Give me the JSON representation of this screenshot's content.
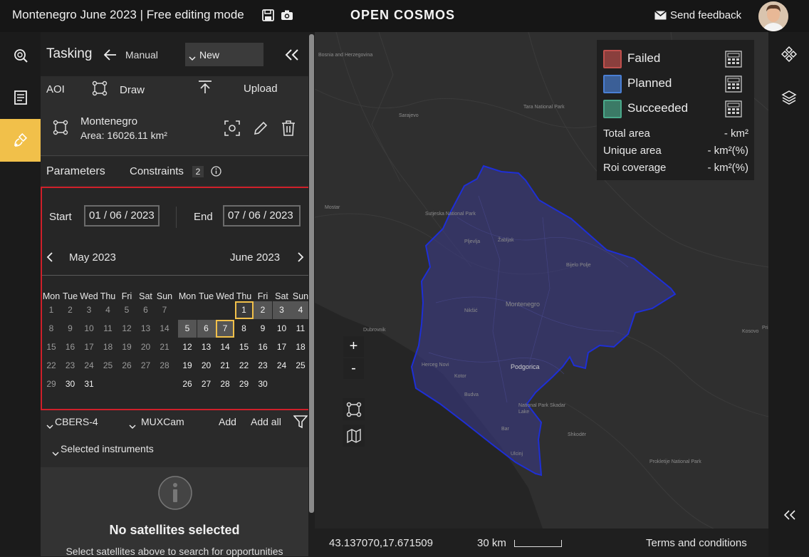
{
  "header": {
    "title": "Montenegro June 2023 | Free editing mode",
    "logo": "OPEN COSMOS",
    "feedback_label": "Send feedback",
    "icons": [
      "save-icon",
      "camera-icon",
      "mail-icon",
      "avatar"
    ]
  },
  "rail": {
    "items": [
      "search-icon",
      "list-icon",
      "satellite-icon"
    ],
    "active": 2
  },
  "panel": {
    "title": "Tasking",
    "mode": "Manual",
    "new_select": "New",
    "aoi_label": "AOI",
    "draw_label": "Draw",
    "upload_label": "Upload",
    "aoi_name": "Montenegro",
    "aoi_area": "Area: 16026.11 km²",
    "parameters_label": "Parameters",
    "constraints_label": "Constraints",
    "constraints_count": "2"
  },
  "dates": {
    "start_label": "Start",
    "start_value": "01 / 06 / 2023",
    "end_label": "End",
    "end_value": "07 / 06 / 2023",
    "month_left": "May 2023",
    "month_right": "June 2023",
    "weekdays": [
      "Mon",
      "Tue",
      "Wed",
      "Thu",
      "Fri",
      "Sat",
      "Sun"
    ],
    "may_weeks": [
      [
        "1",
        "2",
        "3",
        "4",
        "5",
        "6",
        "7"
      ],
      [
        "8",
        "9",
        "10",
        "11",
        "12",
        "13",
        "14"
      ],
      [
        "15",
        "16",
        "17",
        "18",
        "19",
        "20",
        "21"
      ],
      [
        "22",
        "23",
        "24",
        "25",
        "26",
        "27",
        "28"
      ],
      [
        "29",
        "30",
        "31",
        "",
        "",
        "",
        ""
      ]
    ],
    "june_weeks": [
      [
        "",
        "",
        "",
        "1",
        "2",
        "3",
        "4"
      ],
      [
        "5",
        "6",
        "7",
        "8",
        "9",
        "10",
        "11"
      ],
      [
        "12",
        "13",
        "14",
        "15",
        "16",
        "17",
        "18"
      ],
      [
        "19",
        "20",
        "21",
        "22",
        "23",
        "24",
        "25"
      ],
      [
        "26",
        "27",
        "28",
        "29",
        "30",
        "",
        ""
      ]
    ],
    "selected_range": [
      "1",
      "7"
    ]
  },
  "satellites": {
    "satellite": "CBERS-4",
    "instrument": "MUXCam",
    "add_label": "Add",
    "add_all_label": "Add all",
    "selected_instruments_label": "Selected instruments",
    "empty_title": "No satellites selected",
    "empty_text": "Select satellites above to search for opportunities"
  },
  "legend": {
    "items": [
      {
        "label": "Failed",
        "color": "#c0504d"
      },
      {
        "label": "Planned",
        "color": "#4a7fd4"
      },
      {
        "label": "Succeeded",
        "color": "#4aa88a"
      }
    ],
    "stats": [
      {
        "label": "Total area",
        "value": "- km²"
      },
      {
        "label": "Unique area",
        "value": "- km²(%)"
      },
      {
        "label": "Roi coverage",
        "value": "- km²(%)"
      }
    ]
  },
  "map": {
    "labels": [
      "Bosnia and Herzegovina",
      "Sarajevo",
      "Tara National Park",
      "Mostar",
      "Sutjeska National Park",
      "Pljevlja",
      "Žabljak",
      "Nikšić",
      "Montenegro",
      "Bijelo Polje",
      "Podgorica",
      "Dubrovnik",
      "Herceg Novi",
      "Kotor",
      "Budva",
      "Bar",
      "Ulcinj",
      "National Park Skadar Lake",
      "Shkodër",
      "Prokletije National Park",
      "Kosovo",
      "Priš"
    ],
    "coordinates": "43.137070,17.671509",
    "scale": "30 km",
    "terms": "Terms and conditions",
    "zoom_in": "+",
    "zoom_out": "-"
  }
}
